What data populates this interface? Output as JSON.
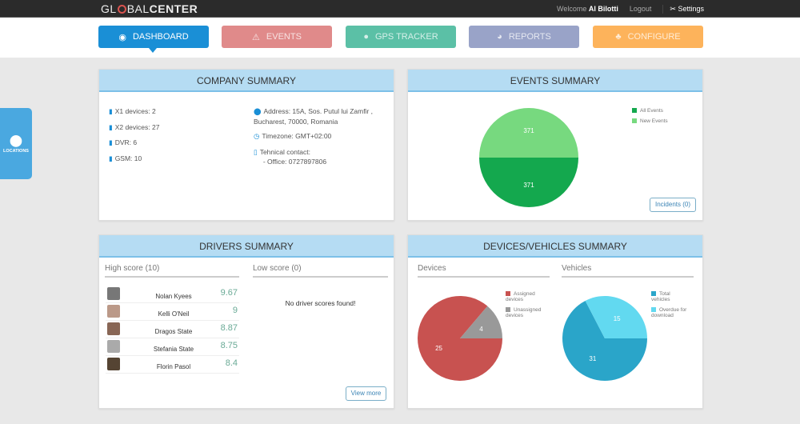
{
  "topbar": {
    "logo_left": "GL",
    "logo_mid": "BAL",
    "logo_right": "CENTER",
    "welcome": "Welcome",
    "user": "Al Bilotti",
    "logout": "Logout",
    "settings": "Settings"
  },
  "nav": [
    {
      "label": "DASHBOARD",
      "icon": "dashboard-icon",
      "color": "#1a8fd6"
    },
    {
      "label": "EVENTS",
      "icon": "warning-icon",
      "color": "#e08a8a"
    },
    {
      "label": "GPS TRACKER",
      "icon": "map-pin-icon",
      "color": "#5bc0a6"
    },
    {
      "label": "REPORTS",
      "icon": "pie-icon",
      "color": "#99a3c8"
    },
    {
      "label": "CONFIGURE",
      "icon": "sitemap-icon",
      "color": "#fdb35b"
    }
  ],
  "side": {
    "locations": "LOCATIONS"
  },
  "company": {
    "title": "COMPANY SUMMARY",
    "devices": [
      "X1 devices: 2",
      "X2 devices: 27",
      "DVR: 6",
      "GSM: 10"
    ],
    "address1": "Address: 15A, Sos. Putul lui Zamfir ,",
    "address2": "Bucharest, 70000, Romania",
    "timezone": "Timezone: GMT+02:00",
    "contact": "Tehnical contact:",
    "office": "- Office: 0727897806"
  },
  "events": {
    "title": "EVENTS SUMMARY",
    "incidents": "Incidents (0)"
  },
  "drivers": {
    "title": "DRIVERS SUMMARY",
    "high": "High score (10)",
    "low": "Low score (0)",
    "empty": "No driver scores found!",
    "view_more": "View more",
    "list": [
      {
        "name": "Nolan Kyees",
        "score": "9.67"
      },
      {
        "name": "Kelli O'Neil",
        "score": "9"
      },
      {
        "name": "Dragos State",
        "score": "8.87"
      },
      {
        "name": "Stefania State",
        "score": "8.75"
      },
      {
        "name": "Florin Pasol",
        "score": "8.4"
      }
    ]
  },
  "devveh": {
    "title": "DEVICES/VEHICLES SUMMARY",
    "devices": "Devices",
    "vehicles": "Vehicles"
  },
  "chart_data": [
    {
      "type": "pie",
      "series": [
        {
          "name": "All Events",
          "value": 371,
          "color": "#14a84e"
        },
        {
          "name": "New Events",
          "value": 371,
          "color": "#77d97f"
        }
      ],
      "legend": "top-right"
    },
    {
      "type": "pie",
      "series": [
        {
          "name": "Assigned devices",
          "value": 25,
          "color": "#c85250"
        },
        {
          "name": "Unassigned devices",
          "value": 4,
          "color": "#999999"
        }
      ],
      "legend": "top-right"
    },
    {
      "type": "pie",
      "series": [
        {
          "name": "Total vehicles",
          "value": 31,
          "color": "#2aa5c9"
        },
        {
          "name": "Overdue for download",
          "value": 15,
          "color": "#62d9f0"
        }
      ],
      "legend": "top-right"
    }
  ]
}
